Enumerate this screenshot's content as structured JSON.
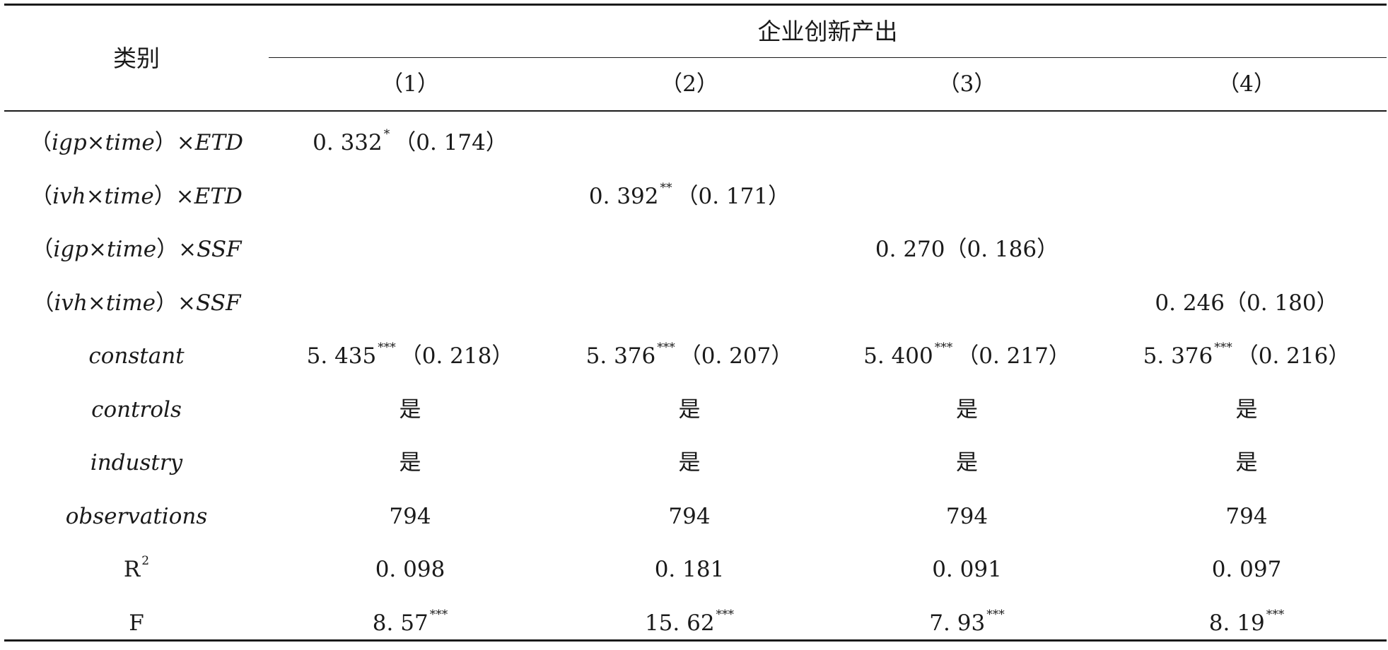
{
  "header": {
    "category_label": "类别",
    "group_label": "企业创新产出",
    "columns": [
      "（1）",
      "（2）",
      "（3）",
      "（4）"
    ]
  },
  "rows": [
    {
      "label_open": "（",
      "label_var": "igp",
      "label_times": "×",
      "label_var2": "time",
      "label_close": "）",
      "label_times2": "×",
      "label_var3": "ETD",
      "cells": [
        {
          "value": "0. 332",
          "sig": "*",
          "se": "（0. 174）"
        },
        {
          "value": "",
          "sig": "",
          "se": ""
        },
        {
          "value": "",
          "sig": "",
          "se": ""
        },
        {
          "value": "",
          "sig": "",
          "se": ""
        }
      ]
    },
    {
      "label_open": "（",
      "label_var": "ivh",
      "label_times": "×",
      "label_var2": "time",
      "label_close": "）",
      "label_times2": "×",
      "label_var3": "ETD",
      "cells": [
        {
          "value": "",
          "sig": "",
          "se": ""
        },
        {
          "value": "0. 392",
          "sig": "**",
          "se": "（0. 171）"
        },
        {
          "value": "",
          "sig": "",
          "se": ""
        },
        {
          "value": "",
          "sig": "",
          "se": ""
        }
      ]
    },
    {
      "label_open": "（",
      "label_var": "igp",
      "label_times": "×",
      "label_var2": "time",
      "label_close": "）",
      "label_times2": "×",
      "label_var3": "SSF",
      "cells": [
        {
          "value": "",
          "sig": "",
          "se": ""
        },
        {
          "value": "",
          "sig": "",
          "se": ""
        },
        {
          "value": "0. 270",
          "sig": "",
          "se": "（0. 186）"
        },
        {
          "value": "",
          "sig": "",
          "se": ""
        }
      ]
    },
    {
      "label_open": "（",
      "label_var": "ivh",
      "label_times": "×",
      "label_var2": "time",
      "label_close": "）",
      "label_times2": "×",
      "label_var3": "SSF",
      "cells": [
        {
          "value": "",
          "sig": "",
          "se": ""
        },
        {
          "value": "",
          "sig": "",
          "se": ""
        },
        {
          "value": "",
          "sig": "",
          "se": ""
        },
        {
          "value": "0. 246",
          "sig": "",
          "se": "（0. 180）"
        }
      ]
    }
  ],
  "simple_rows": [
    {
      "label": "constant",
      "italic": true,
      "cells": [
        {
          "value": "5. 435",
          "sig": "***",
          "se": "（0. 218）"
        },
        {
          "value": "5. 376",
          "sig": "***",
          "se": "（0. 207）"
        },
        {
          "value": "5. 400",
          "sig": "***",
          "se": "（0. 217）"
        },
        {
          "value": "5. 376",
          "sig": "***",
          "se": "（0. 216）"
        }
      ]
    },
    {
      "label": "controls",
      "italic": true,
      "cells": [
        {
          "value": "是",
          "sig": "",
          "se": ""
        },
        {
          "value": "是",
          "sig": "",
          "se": ""
        },
        {
          "value": "是",
          "sig": "",
          "se": ""
        },
        {
          "value": "是",
          "sig": "",
          "se": ""
        }
      ]
    },
    {
      "label": "industry",
      "italic": true,
      "cells": [
        {
          "value": "是",
          "sig": "",
          "se": ""
        },
        {
          "value": "是",
          "sig": "",
          "se": ""
        },
        {
          "value": "是",
          "sig": "",
          "se": ""
        },
        {
          "value": "是",
          "sig": "",
          "se": ""
        }
      ]
    },
    {
      "label": "observations",
      "italic": true,
      "cells": [
        {
          "value": "794",
          "sig": "",
          "se": ""
        },
        {
          "value": "794",
          "sig": "",
          "se": ""
        },
        {
          "value": "794",
          "sig": "",
          "se": ""
        },
        {
          "value": "794",
          "sig": "",
          "se": ""
        }
      ]
    },
    {
      "label": "R",
      "label_sup": "2",
      "italic": false,
      "cells": [
        {
          "value": "0. 098",
          "sig": "",
          "se": ""
        },
        {
          "value": "0. 181",
          "sig": "",
          "se": ""
        },
        {
          "value": "0. 091",
          "sig": "",
          "se": ""
        },
        {
          "value": "0. 097",
          "sig": "",
          "se": ""
        }
      ]
    },
    {
      "label": "F",
      "italic": false,
      "cells": [
        {
          "value": "8. 57",
          "sig": "***",
          "se": ""
        },
        {
          "value": "15. 62",
          "sig": "***",
          "se": ""
        },
        {
          "value": "7. 93",
          "sig": "***",
          "se": ""
        },
        {
          "value": "8. 19",
          "sig": "***",
          "se": ""
        }
      ]
    }
  ]
}
